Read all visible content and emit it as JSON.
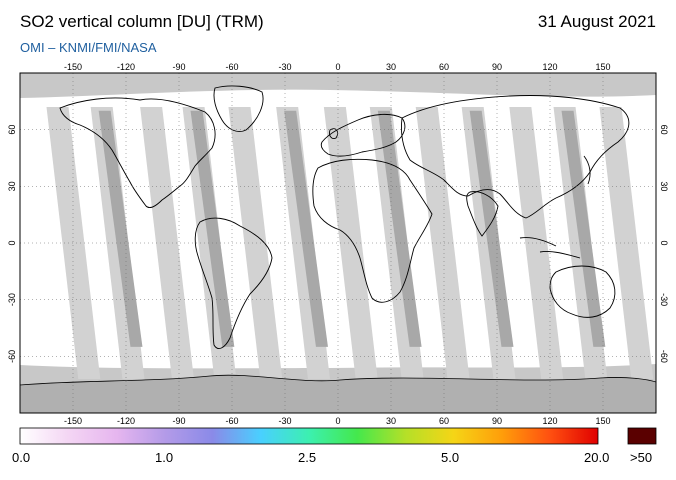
{
  "header": {
    "title": "SO2 vertical column [DU] (TRM)",
    "date": "31 August 2021",
    "subtitle": "OMI  –  KNMI/FMI/NASA"
  },
  "map": {
    "projection": "equirectangular",
    "lon_ticks": [
      -150,
      -120,
      -90,
      -60,
      -30,
      0,
      30,
      60,
      90,
      120,
      150
    ],
    "lat_ticks": [
      60,
      30,
      0,
      -30,
      -60
    ],
    "grid": "dotted",
    "colors": {
      "no_data": "#c8c8c8",
      "swath_overlap": "#a9a9a9",
      "coastline": "#000000",
      "background_values": "#ffffff"
    }
  },
  "colorbar": {
    "tick_labels": [
      "0.0",
      "1.0",
      "2.5",
      "5.0",
      "20.0"
    ],
    "overflow_label": ">50",
    "overflow_color": "#5a0000",
    "stops": [
      "#ffffff",
      "#f4d6f4",
      "#e6b6ef",
      "#b49be8",
      "#8a8ae8",
      "#49d0ff",
      "#3cf0b0",
      "#44e84c",
      "#b4e028",
      "#f5d516",
      "#ff9e0a",
      "#ff5010",
      "#e00000"
    ]
  }
}
